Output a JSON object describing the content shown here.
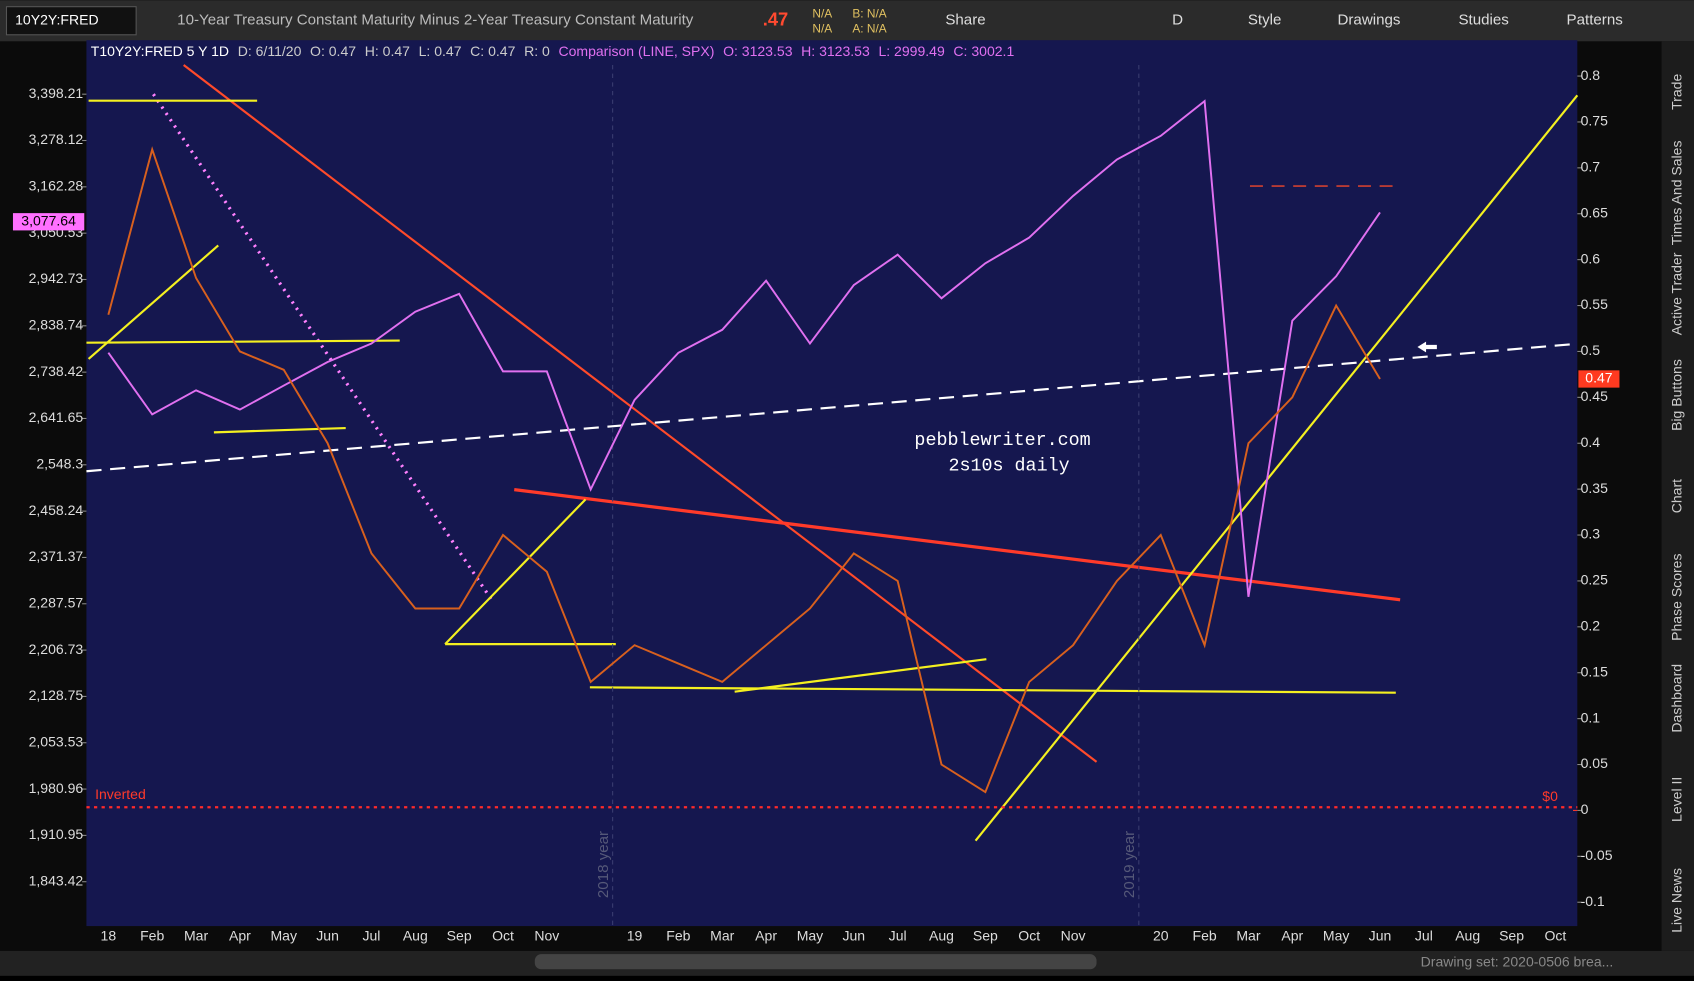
{
  "toolbar": {
    "symbol": "10Y2Y:FRED",
    "description": "10-Year Treasury Constant Maturity Minus 2-Year Treasury Constant Maturity",
    "last": ".47",
    "quotes": [
      "N/A",
      "N/A",
      "B: N/A",
      "A: N/A"
    ],
    "buttons": [
      "Share",
      "D",
      "Style",
      "Drawings",
      "Studies",
      "Patterns"
    ]
  },
  "header": {
    "study": "T10Y2Y:FRED 5 Y 1D",
    "fields": [
      "D: 6/11/20",
      "O: 0.47",
      "H: 0.47",
      "L: 0.47",
      "C: 0.47",
      "R: 0"
    ],
    "comparison": "Comparison (LINE, SPX)",
    "comparison_fields": [
      "O: 3123.53",
      "H: 3123.53",
      "L: 2999.49",
      "C: 3002.1"
    ]
  },
  "side_tabs": [
    "Trade",
    "Times And Sales",
    "Active Trader",
    "Big Buttons",
    "Chart",
    "Phase Scores",
    "Dashboard",
    "Level II",
    "Live News"
  ],
  "status": "Drawing set: 2020-0506 brea...",
  "chart_data": {
    "type": "line",
    "notes": [
      "pebblewriter.com",
      "2s10s daily"
    ],
    "watermarks": [
      "2018 year",
      "2019 year"
    ],
    "inverted_label": "Inverted",
    "zero_marker": {
      "value": 0,
      "label": "$0"
    },
    "price_tag": {
      "value": 3077.64,
      "label": "3,077.64"
    },
    "last_tag": {
      "value": 0.47,
      "label": "0.47"
    },
    "categories": [
      "18",
      "Feb",
      "Mar",
      "Apr",
      "May",
      "Jun",
      "Jul",
      "Aug",
      "Sep",
      "Oct",
      "Nov",
      null,
      "19",
      "Feb",
      "Mar",
      "Apr",
      "May",
      "Jun",
      "Jul",
      "Aug",
      "Sep",
      "Oct",
      "Nov",
      null,
      "20",
      "Feb",
      "Mar",
      "Apr",
      "May",
      "Jun",
      "Jul",
      "Aug",
      "Sep",
      "Oct"
    ],
    "series": [
      {
        "color": "#e070f0",
        "values": [
          2780,
          2650,
          2700,
          2660,
          2710,
          2760,
          2800,
          2870,
          2910,
          2740,
          2740,
          2500,
          2680,
          2780,
          2830,
          2940,
          2800,
          2930,
          3000,
          2900,
          2980,
          3040,
          3140,
          3230,
          3290,
          3380,
          2300,
          2850,
          2950,
          3100,
          null,
          null,
          null,
          null
        ]
      },
      {
        "color": "#d8601e",
        "axis": "y2",
        "values": [
          0.54,
          0.72,
          0.58,
          0.5,
          0.48,
          0.4,
          0.28,
          0.22,
          0.22,
          0.3,
          0.26,
          0.14,
          0.18,
          0.16,
          0.14,
          0.18,
          0.22,
          0.28,
          0.25,
          0.05,
          0.02,
          0.14,
          0.18,
          0.25,
          0.3,
          0.18,
          0.4,
          0.45,
          0.55,
          0.47,
          null,
          null,
          null,
          null
        ]
      }
    ],
    "log_y": true,
    "ylim": [
      1781,
      3476
    ],
    "yticks": [
      {
        "value": 3398.21,
        "label": "3,398.21"
      },
      {
        "value": 3278.12,
        "label": "3,278.12"
      },
      {
        "value": 3162.28,
        "label": "3,162.28"
      },
      {
        "value": 3050.53,
        "label": "3,050.53"
      },
      {
        "value": 2942.73,
        "label": "2,942.73"
      },
      {
        "value": 2838.74,
        "label": "2,838.74"
      },
      {
        "value": 2738.42,
        "label": "2,738.42"
      },
      {
        "value": 2641.65,
        "label": "2,641.65"
      },
      {
        "value": 2548.3,
        "label": "2,548.3"
      },
      {
        "value": 2458.24,
        "label": "2,458.24"
      },
      {
        "value": 2371.37,
        "label": "2,371.37"
      },
      {
        "value": 2287.57,
        "label": "2,287.57"
      },
      {
        "value": 2206.73,
        "label": "2,206.73"
      },
      {
        "value": 2128.75,
        "label": "2,128.75"
      },
      {
        "value": 2053.53,
        "label": "2,053.53"
      },
      {
        "value": 1980.96,
        "label": "1,980.96"
      },
      {
        "value": 1910.95,
        "label": "1,910.95"
      },
      {
        "value": 1843.42,
        "label": "1,843.42"
      }
    ],
    "y2lim": [
      -0.126,
      0.812
    ],
    "y2ticks": [
      0.8,
      0.75,
      0.7,
      0.65,
      0.6,
      0.55,
      0.5,
      0.45,
      0.4,
      0.35,
      0.3,
      0.25,
      0.2,
      0.15,
      0.1,
      0.05,
      0,
      -0.05,
      -0.1
    ]
  }
}
